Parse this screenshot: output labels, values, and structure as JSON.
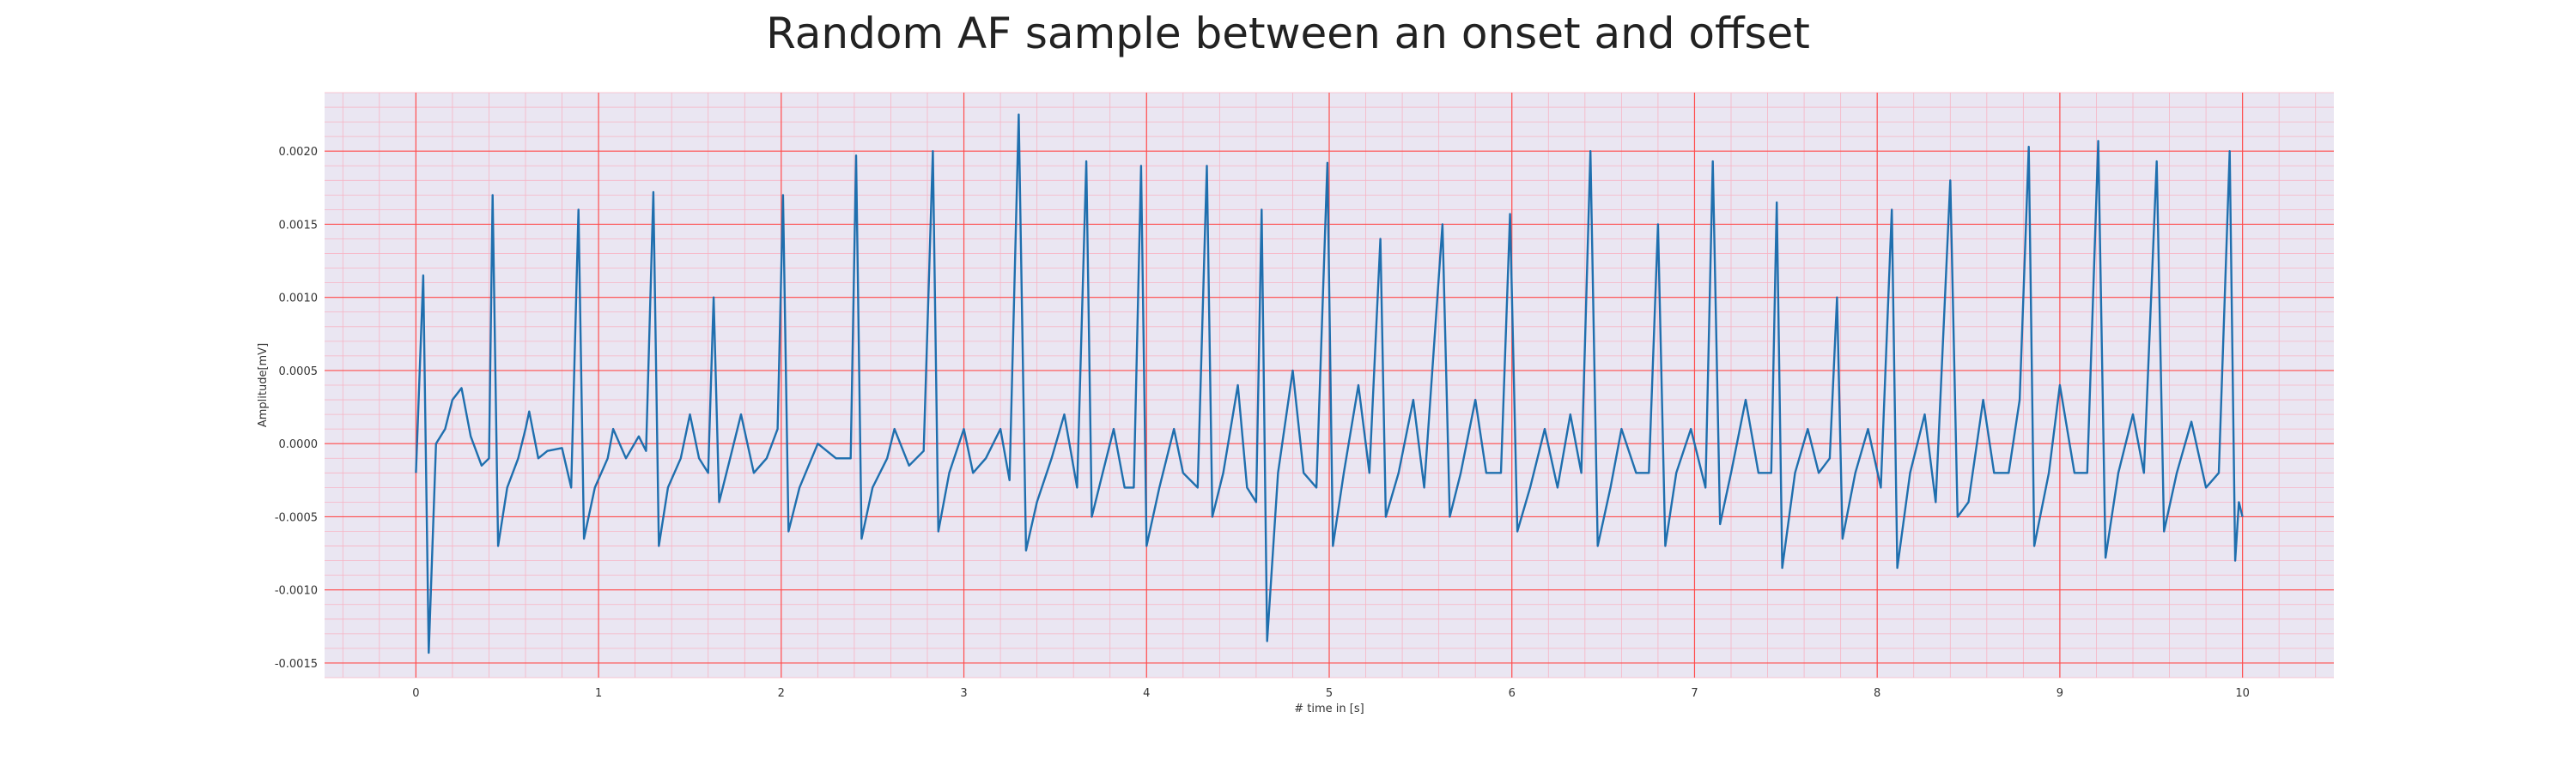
{
  "chart_data": {
    "type": "line",
    "title": "Random AF sample between an onset and offset",
    "xlabel": "# time in [s]",
    "ylabel": "Amplitude[mV]",
    "xlim": [
      -0.5,
      10.5
    ],
    "ylim": [
      -0.0016,
      0.0024
    ],
    "xticks": [
      0,
      1,
      2,
      3,
      4,
      5,
      6,
      7,
      8,
      9,
      10
    ],
    "xtick_labels": [
      "0",
      "1",
      "2",
      "3",
      "4",
      "5",
      "6",
      "7",
      "8",
      "9",
      "10"
    ],
    "yticks": [
      -0.0015,
      -0.001,
      -0.0005,
      0.0,
      0.0005,
      0.001,
      0.0015,
      0.002
    ],
    "ytick_labels": [
      "-0.0015",
      "-0.0010",
      "-0.0005",
      "0.0000",
      "0.0005",
      "0.0010",
      "0.0015",
      "0.0020"
    ],
    "grid": true,
    "colors": {
      "background": "#eae6f2",
      "major_grid": "#ff4d4d",
      "minor_grid": "#f7b4c4",
      "line": "#1f6fae"
    },
    "series": [
      {
        "values": [
          [
            0.0,
            -0.0002
          ],
          [
            0.04,
            0.00115
          ],
          [
            0.07,
            -0.00143
          ],
          [
            0.11,
            0.0
          ],
          [
            0.16,
            0.0001
          ],
          [
            0.2,
            0.0003
          ],
          [
            0.25,
            0.00038
          ],
          [
            0.3,
            5e-05
          ],
          [
            0.36,
            -0.00015
          ],
          [
            0.4,
            -0.0001
          ],
          [
            0.42,
            0.0017
          ],
          [
            0.45,
            -0.0007
          ],
          [
            0.5,
            -0.0003
          ],
          [
            0.56,
            -0.0001
          ],
          [
            0.6,
            0.0001
          ],
          [
            0.62,
            0.00022
          ],
          [
            0.67,
            -0.0001
          ],
          [
            0.72,
            -5e-05
          ],
          [
            0.8,
            -3e-05
          ],
          [
            0.85,
            -0.0003
          ],
          [
            0.89,
            0.0016
          ],
          [
            0.92,
            -0.00065
          ],
          [
            0.98,
            -0.0003
          ],
          [
            1.05,
            -0.0001
          ],
          [
            1.08,
            0.0001
          ],
          [
            1.15,
            -0.0001
          ],
          [
            1.22,
            5e-05
          ],
          [
            1.26,
            -5e-05
          ],
          [
            1.3,
            0.00172
          ],
          [
            1.33,
            -0.0007
          ],
          [
            1.38,
            -0.0003
          ],
          [
            1.45,
            -0.0001
          ],
          [
            1.5,
            0.0002
          ],
          [
            1.55,
            -0.0001
          ],
          [
            1.6,
            -0.0002
          ],
          [
            1.63,
            0.001
          ],
          [
            1.66,
            -0.0004
          ],
          [
            1.72,
            -0.0001
          ],
          [
            1.78,
            0.0002
          ],
          [
            1.85,
            -0.0002
          ],
          [
            1.92,
            -0.0001
          ],
          [
            1.98,
            0.0001
          ],
          [
            2.01,
            0.0017
          ],
          [
            2.04,
            -0.0006
          ],
          [
            2.1,
            -0.0003
          ],
          [
            2.2,
            0.0
          ],
          [
            2.3,
            -0.0001
          ],
          [
            2.38,
            -0.0001
          ],
          [
            2.41,
            0.00197
          ],
          [
            2.44,
            -0.00065
          ],
          [
            2.5,
            -0.0003
          ],
          [
            2.58,
            -0.0001
          ],
          [
            2.62,
            0.0001
          ],
          [
            2.7,
            -0.00015
          ],
          [
            2.78,
            -5e-05
          ],
          [
            2.83,
            0.002
          ],
          [
            2.86,
            -0.0006
          ],
          [
            2.92,
            -0.0002
          ],
          [
            3.0,
            0.0001
          ],
          [
            3.05,
            -0.0002
          ],
          [
            3.12,
            -0.0001
          ],
          [
            3.2,
            0.0001
          ],
          [
            3.25,
            -0.00025
          ],
          [
            3.3,
            0.00225
          ],
          [
            3.34,
            -0.00073
          ],
          [
            3.4,
            -0.0004
          ],
          [
            3.48,
            -0.0001
          ],
          [
            3.55,
            0.0002
          ],
          [
            3.62,
            -0.0003
          ],
          [
            3.67,
            0.00193
          ],
          [
            3.7,
            -0.0005
          ],
          [
            3.76,
            -0.0002
          ],
          [
            3.82,
            0.0001
          ],
          [
            3.88,
            -0.0003
          ],
          [
            3.93,
            -0.0003
          ],
          [
            3.97,
            0.0019
          ],
          [
            4.0,
            -0.0007
          ],
          [
            4.07,
            -0.0003
          ],
          [
            4.15,
            0.0001
          ],
          [
            4.2,
            -0.0002
          ],
          [
            4.28,
            -0.0003
          ],
          [
            4.33,
            0.0019
          ],
          [
            4.36,
            -0.0005
          ],
          [
            4.42,
            -0.0002
          ],
          [
            4.5,
            0.0004
          ],
          [
            4.55,
            -0.0003
          ],
          [
            4.6,
            -0.0004
          ],
          [
            4.63,
            0.0016
          ],
          [
            4.66,
            -0.00135
          ],
          [
            4.72,
            -0.0002
          ],
          [
            4.8,
            0.0005
          ],
          [
            4.86,
            -0.0002
          ],
          [
            4.93,
            -0.0003
          ],
          [
            4.99,
            0.00192
          ],
          [
            5.02,
            -0.0007
          ],
          [
            5.08,
            -0.0002
          ],
          [
            5.16,
            0.0004
          ],
          [
            5.22,
            -0.0002
          ],
          [
            5.28,
            0.0014
          ],
          [
            5.31,
            -0.0005
          ],
          [
            5.38,
            -0.0002
          ],
          [
            5.46,
            0.0003
          ],
          [
            5.52,
            -0.0003
          ],
          [
            5.62,
            0.0015
          ],
          [
            5.66,
            -0.0005
          ],
          [
            5.72,
            -0.0002
          ],
          [
            5.8,
            0.0003
          ],
          [
            5.86,
            -0.0002
          ],
          [
            5.94,
            -0.0002
          ],
          [
            5.99,
            0.00157
          ],
          [
            6.03,
            -0.0006
          ],
          [
            6.1,
            -0.0003
          ],
          [
            6.18,
            0.0001
          ],
          [
            6.25,
            -0.0003
          ],
          [
            6.32,
            0.0002
          ],
          [
            6.38,
            -0.0002
          ],
          [
            6.43,
            0.002
          ],
          [
            6.47,
            -0.0007
          ],
          [
            6.54,
            -0.0003
          ],
          [
            6.6,
            0.0001
          ],
          [
            6.68,
            -0.0002
          ],
          [
            6.75,
            -0.0002
          ],
          [
            6.8,
            0.0015
          ],
          [
            6.84,
            -0.0007
          ],
          [
            6.9,
            -0.0002
          ],
          [
            6.98,
            0.0001
          ],
          [
            7.06,
            -0.0003
          ],
          [
            7.1,
            0.00193
          ],
          [
            7.14,
            -0.00055
          ],
          [
            7.2,
            -0.0002
          ],
          [
            7.28,
            0.0003
          ],
          [
            7.35,
            -0.0002
          ],
          [
            7.42,
            -0.0002
          ],
          [
            7.45,
            0.00165
          ],
          [
            7.48,
            -0.00085
          ],
          [
            7.55,
            -0.0002
          ],
          [
            7.62,
            0.0001
          ],
          [
            7.68,
            -0.0002
          ],
          [
            7.74,
            -0.0001
          ],
          [
            7.78,
            0.001
          ],
          [
            7.81,
            -0.00065
          ],
          [
            7.88,
            -0.0002
          ],
          [
            7.95,
            0.0001
          ],
          [
            8.02,
            -0.0003
          ],
          [
            8.08,
            0.0016
          ],
          [
            8.11,
            -0.00085
          ],
          [
            8.18,
            -0.0002
          ],
          [
            8.26,
            0.0002
          ],
          [
            8.32,
            -0.0004
          ],
          [
            8.4,
            0.0018
          ],
          [
            8.44,
            -0.0005
          ],
          [
            8.5,
            -0.0004
          ],
          [
            8.58,
            0.0003
          ],
          [
            8.64,
            -0.0002
          ],
          [
            8.72,
            -0.0002
          ],
          [
            8.78,
            0.0003
          ],
          [
            8.83,
            0.00203
          ],
          [
            8.86,
            -0.0007
          ],
          [
            8.94,
            -0.0002
          ],
          [
            9.0,
            0.0004
          ],
          [
            9.08,
            -0.0002
          ],
          [
            9.15,
            -0.0002
          ],
          [
            9.21,
            0.00207
          ],
          [
            9.25,
            -0.00078
          ],
          [
            9.32,
            -0.0002
          ],
          [
            9.4,
            0.0002
          ],
          [
            9.46,
            -0.0002
          ],
          [
            9.53,
            0.00193
          ],
          [
            9.57,
            -0.0006
          ],
          [
            9.64,
            -0.0002
          ],
          [
            9.72,
            0.00015
          ],
          [
            9.8,
            -0.0003
          ],
          [
            9.87,
            -0.0002
          ],
          [
            9.93,
            0.002
          ],
          [
            9.96,
            -0.0008
          ],
          [
            9.98,
            -0.0004
          ],
          [
            10.0,
            -0.0005
          ]
        ]
      }
    ]
  }
}
